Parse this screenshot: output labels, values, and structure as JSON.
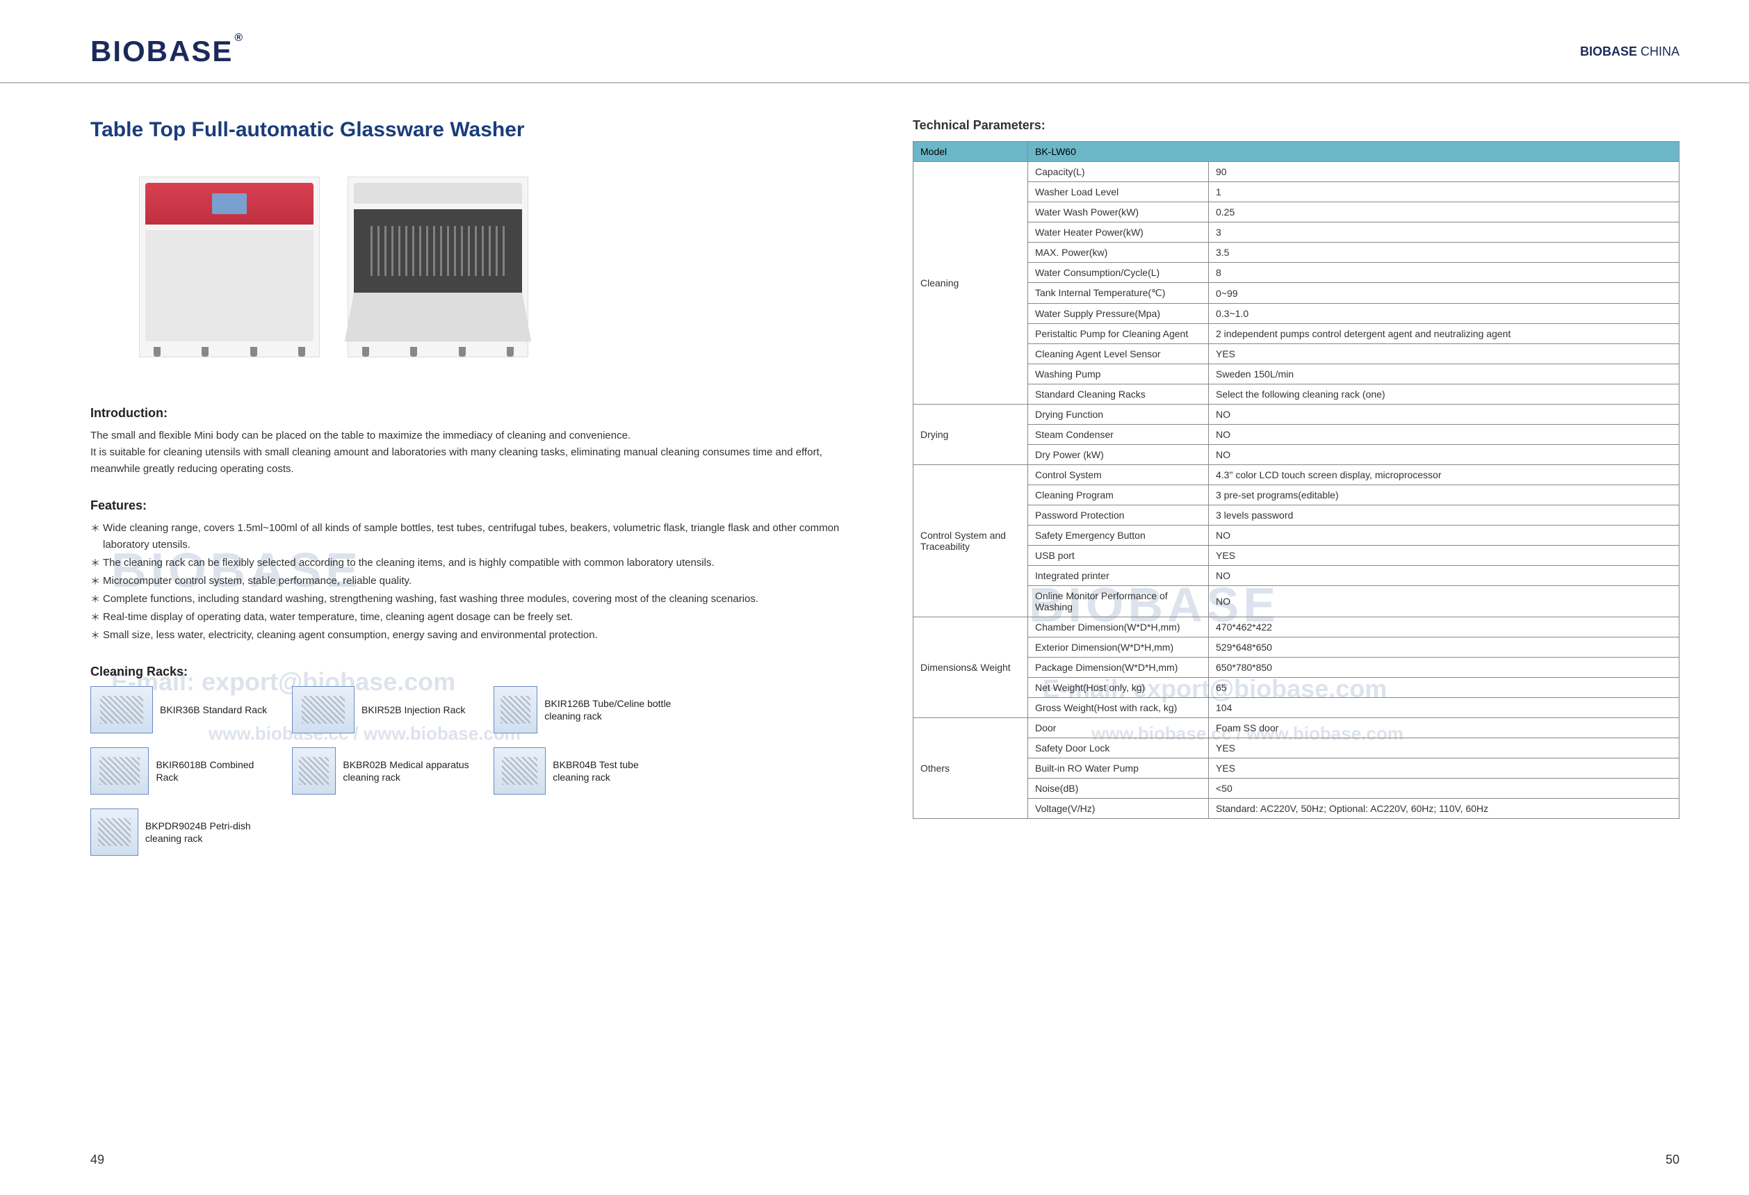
{
  "header": {
    "logo_text": "BIOBASE",
    "logo_reg": "®",
    "brand_right_bold": "BIOBASE",
    "brand_right_rest": " CHINA"
  },
  "watermarks": {
    "big": "BIOBASE",
    "email": "E-mail: export@biobase.com",
    "site_left": "www.biobase.cc / www.biobase.com",
    "site_right": "www.biobase.cc / www.biobase.com"
  },
  "left": {
    "title": "Table Top Full-automatic Glassware Washer",
    "intro_h": "Introduction:",
    "intro_lines": [
      "The small and flexible Mini body can be placed on the table to maximize the immediacy of cleaning and convenience.",
      "It is suitable for cleaning utensils with small cleaning amount and laboratories with many cleaning tasks, eliminating manual cleaning consumes time and effort, meanwhile greatly reducing operating costs."
    ],
    "features_h": "Features:",
    "features": [
      "Wide cleaning range, covers 1.5ml~100ml of all kinds of sample bottles, test tubes, centrifugal tubes, beakers, volumetric flask, triangle flask and other common laboratory utensils.",
      "The cleaning rack can be flexibly selected according to the cleaning items, and is highly compatible with common laboratory utensils.",
      "Microcomputer control system, stable performance, reliable quality.",
      "Complete functions, including standard washing, strengthening washing, fast washing three modules, covering most of the cleaning scenarios.",
      "Real-time display of operating data, water temperature, time, cleaning agent dosage can be freely set.",
      "Small size, less water, electricity, cleaning agent consumption, energy saving and environmental protection."
    ],
    "racks_h": "Cleaning Racks:",
    "racks": [
      {
        "name": "rack-bkir36b",
        "label": "BKIR36B Standard Rack"
      },
      {
        "name": "rack-bkir52b",
        "label": "BKIR52B Injection Rack"
      },
      {
        "name": "rack-bkir126b",
        "label": "BKIR126B Tube/Celine bottle cleaning rack"
      },
      {
        "name": "rack-bkir6018b",
        "label": "BKIR6018B Combined Rack"
      },
      {
        "name": "rack-bkbr02b",
        "label": "BKBR02B Medical apparatus cleaning rack"
      },
      {
        "name": "rack-bkbr04b",
        "label": "BKBR04B Test tube cleaning rack"
      },
      {
        "name": "rack-bkpdr9024b",
        "label": "BKPDR9024B Petri-dish cleaning rack"
      }
    ],
    "page_num": "49"
  },
  "right": {
    "tp_h": "Technical Parameters:",
    "header_row": [
      "Model",
      "BK-LW60"
    ],
    "groups": [
      {
        "cat": "Cleaning",
        "rows": [
          [
            "Capacity(L)",
            "90"
          ],
          [
            "Washer Load Level",
            "1"
          ],
          [
            "Water Wash Power(kW)",
            "0.25"
          ],
          [
            "Water Heater Power(kW)",
            "3"
          ],
          [
            "MAX. Power(kw)",
            "3.5"
          ],
          [
            "Water Consumption/Cycle(L)",
            "8"
          ],
          [
            "Tank Internal Temperature(℃)",
            "0~99"
          ],
          [
            "Water Supply Pressure(Mpa)",
            "0.3~1.0"
          ],
          [
            "Peristaltic Pump for Cleaning Agent",
            "2 independent pumps control detergent agent and neutralizing agent"
          ],
          [
            "Cleaning Agent Level Sensor",
            "YES"
          ],
          [
            "Washing Pump",
            "Sweden 150L/min"
          ],
          [
            "Standard Cleaning Racks",
            "Select the following cleaning rack (one)"
          ]
        ]
      },
      {
        "cat": "Drying",
        "rows": [
          [
            "Drying Function",
            "NO"
          ],
          [
            "Steam Condenser",
            "NO"
          ],
          [
            "Dry Power (kW)",
            "NO"
          ]
        ]
      },
      {
        "cat": "Control System and Traceability",
        "rows": [
          [
            "Control System",
            "4.3\" color LCD touch screen display, microprocessor"
          ],
          [
            "Cleaning Program",
            "3 pre-set programs(editable)"
          ],
          [
            "Password Protection",
            "3 levels password"
          ],
          [
            "Safety Emergency Button",
            "NO"
          ],
          [
            "USB port",
            "YES"
          ],
          [
            "Integrated printer",
            "NO"
          ],
          [
            "Online Monitor Performance of Washing",
            "NO"
          ]
        ]
      },
      {
        "cat": "Dimensions& Weight",
        "rows": [
          [
            "Chamber Dimension(W*D*H,mm)",
            "470*462*422"
          ],
          [
            "Exterior Dimension(W*D*H,mm)",
            "529*648*650"
          ],
          [
            "Package Dimension(W*D*H,mm)",
            "650*780*850"
          ],
          [
            "Net Weight(Host only, kg)",
            "65"
          ],
          [
            "Gross Weight(Host with rack, kg)",
            "104"
          ]
        ]
      },
      {
        "cat": "Others",
        "rows": [
          [
            "Door",
            "Foam SS door"
          ],
          [
            "Safety Door Lock",
            "YES"
          ],
          [
            "Built-in RO Water Pump",
            "YES"
          ],
          [
            "Noise(dB)",
            "<50"
          ],
          [
            "Voltage(V/Hz)",
            "Standard: AC220V, 50Hz; Optional: AC220V, 60Hz; 110V, 60Hz"
          ]
        ]
      }
    ],
    "page_num": "50"
  },
  "styling": {
    "title_color": "#1a3d7a",
    "table_header_bg": "#6bb7c8",
    "table_border": "#888888",
    "body_font_size": 15,
    "table_font_size": 14,
    "watermark_color": "#dde3ec"
  }
}
